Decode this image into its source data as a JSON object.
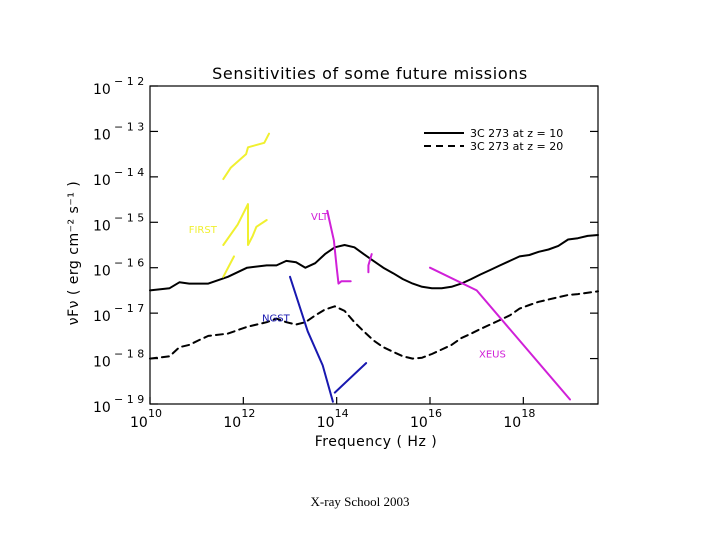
{
  "chart_data": {
    "type": "line",
    "title": "Sensitivities of some future missions",
    "xlabel": "Frequency ( Hz )",
    "ylabel": "νFν ( erg cm⁻² s⁻¹ )",
    "x_scale": "log10",
    "y_scale": "log10",
    "xlim_log10": [
      10,
      19.6
    ],
    "ylim_log10": [
      -19,
      -12
    ],
    "x_ticks": [
      {
        "exp": 10,
        "label_base": "10",
        "label_exp": "10"
      },
      {
        "exp": 12,
        "label_base": "10",
        "label_exp": "12"
      },
      {
        "exp": 14,
        "label_base": "10",
        "label_exp": "14"
      },
      {
        "exp": 16,
        "label_base": "10",
        "label_exp": "16"
      },
      {
        "exp": 18,
        "label_base": "10",
        "label_exp": "18"
      }
    ],
    "y_ticks": [
      {
        "exp": -12,
        "label_base": "10",
        "label_exp": "− 1 2"
      },
      {
        "exp": -13,
        "label_base": "10",
        "label_exp": "− 1 3"
      },
      {
        "exp": -14,
        "label_base": "10",
        "label_exp": "− 1 4"
      },
      {
        "exp": -15,
        "label_base": "10",
        "label_exp": "− 1 5"
      },
      {
        "exp": -16,
        "label_base": "10",
        "label_exp": "− 1 6"
      },
      {
        "exp": -17,
        "label_base": "10",
        "label_exp": "− 1 7"
      },
      {
        "exp": -18,
        "label_base": "10",
        "label_exp": "− 1 8"
      },
      {
        "exp": -19,
        "label_base": "10",
        "label_exp": "− 1 9"
      }
    ],
    "legend": {
      "placement": "top-right",
      "items": [
        {
          "label": "3C 273 at z = 10",
          "dash": "solid"
        },
        {
          "label": "3C 273 at z = 20",
          "dash": "dashed"
        }
      ]
    },
    "series": [
      {
        "name": "3C 273 at z = 10",
        "color": "#000000",
        "dash": "solid",
        "x": [
          10.0,
          10.42,
          10.63,
          10.84,
          11.04,
          11.25,
          11.67,
          12.08,
          12.5,
          12.71,
          12.92,
          13.13,
          13.33,
          13.54,
          13.75,
          13.96,
          14.17,
          14.38,
          14.58,
          14.79,
          15.0,
          15.21,
          15.42,
          15.63,
          15.83,
          16.04,
          16.25,
          16.46,
          16.67,
          16.88,
          17.08,
          17.29,
          17.5,
          17.71,
          17.92,
          18.13,
          18.33,
          18.54,
          18.75,
          18.96,
          19.17,
          19.38,
          19.6
        ],
        "y": [
          -16.5,
          -16.45,
          -16.32,
          -16.35,
          -16.35,
          -16.35,
          -16.2,
          -16.0,
          -15.95,
          -15.95,
          -15.85,
          -15.88,
          -16.0,
          -15.9,
          -15.7,
          -15.55,
          -15.5,
          -15.55,
          -15.7,
          -15.85,
          -16.0,
          -16.12,
          -16.25,
          -16.35,
          -16.42,
          -16.45,
          -16.45,
          -16.42,
          -16.35,
          -16.25,
          -16.15,
          -16.05,
          -15.95,
          -15.85,
          -15.75,
          -15.72,
          -15.65,
          -15.6,
          -15.52,
          -15.38,
          -15.35,
          -15.3,
          -15.28
        ]
      },
      {
        "name": "3C 273 at z = 20",
        "color": "#000000",
        "dash": "dashed",
        "x": [
          10.0,
          10.42,
          10.63,
          10.84,
          11.04,
          11.25,
          11.67,
          12.08,
          12.5,
          12.71,
          12.92,
          13.13,
          13.33,
          13.54,
          13.75,
          13.96,
          14.17,
          14.38,
          14.58,
          14.79,
          15.0,
          15.21,
          15.42,
          15.63,
          15.83,
          16.04,
          16.25,
          16.46,
          16.67,
          16.88,
          17.08,
          17.29,
          17.5,
          17.71,
          17.92,
          18.13,
          18.33,
          18.54,
          18.75,
          18.96,
          19.17,
          19.38,
          19.6
        ],
        "y": [
          -18.0,
          -17.95,
          -17.75,
          -17.7,
          -17.6,
          -17.5,
          -17.45,
          -17.3,
          -17.2,
          -17.12,
          -17.2,
          -17.25,
          -17.2,
          -17.05,
          -16.92,
          -16.85,
          -16.95,
          -17.2,
          -17.4,
          -17.6,
          -17.75,
          -17.85,
          -17.95,
          -18.0,
          -17.98,
          -17.9,
          -17.8,
          -17.7,
          -17.55,
          -17.45,
          -17.35,
          -17.25,
          -17.15,
          -17.05,
          -16.9,
          -16.82,
          -16.75,
          -16.7,
          -16.65,
          -16.6,
          -16.58,
          -16.55,
          -16.52
        ]
      },
      {
        "name": "FIRST",
        "color": "#f0f030",
        "dash": "solid",
        "x": [
          11.57,
          11.73,
          12.06,
          12.1,
          12.45,
          12.45,
          12.55
        ],
        "y": [
          -14.05,
          -13.8,
          -13.5,
          -13.35,
          -13.25,
          -13.25,
          -13.05
        ]
      },
      {
        "name": "FIRST",
        "color": "#f0f030",
        "dash": "solid",
        "x": [
          11.57,
          11.88,
          12.1,
          12.1,
          12.2,
          12.28,
          12.5
        ],
        "y": [
          -15.5,
          -15.05,
          -14.6,
          -15.5,
          -15.3,
          -15.1,
          -14.95
        ]
      },
      {
        "name": "FIRST",
        "color": "#f0f030",
        "dash": "solid",
        "x": [
          11.57,
          11.8
        ],
        "y": [
          -16.2,
          -15.75
        ]
      },
      {
        "name": "VLT",
        "color": "#d020d8",
        "dash": "solid",
        "x": [
          13.8,
          13.94,
          14.0,
          14.04,
          14.1,
          14.3
        ],
        "y": [
          -14.75,
          -15.4,
          -16.0,
          -16.35,
          -16.3,
          -16.3
        ]
      },
      {
        "name": "VLT",
        "color": "#d020d8",
        "dash": "solid",
        "x": [
          14.75,
          14.68,
          14.68
        ],
        "y": [
          -15.7,
          -15.95,
          -16.1
        ]
      },
      {
        "name": "NGST",
        "color": "#1818b0",
        "dash": "solid",
        "x": [
          13.0,
          13.38,
          13.7,
          13.92
        ],
        "y": [
          -16.2,
          -17.4,
          -18.15,
          -18.95
        ]
      },
      {
        "name": "NGST",
        "color": "#1818b0",
        "dash": "solid",
        "x": [
          13.96,
          14.63
        ],
        "y": [
          -18.75,
          -18.1
        ]
      },
      {
        "name": "XEUS",
        "color": "#d020d8",
        "dash": "solid",
        "x": [
          16.0,
          17.0,
          19.0
        ],
        "y": [
          -16.0,
          -16.5,
          -18.9
        ]
      }
    ],
    "annotations": [
      {
        "text": "FIRST",
        "color": "#f0f030",
        "x": 10.83,
        "y": -15.24
      },
      {
        "text": "VLT",
        "color": "#d020d8",
        "x": 13.45,
        "y": -14.95
      },
      {
        "text": "NGST",
        "color": "#1818b0",
        "x": 12.4,
        "y": -17.18
      },
      {
        "text": "XEUS",
        "color": "#d020d8",
        "x": 17.05,
        "y": -17.98
      }
    ]
  },
  "footer": {
    "text": "X-ray School 2003"
  }
}
